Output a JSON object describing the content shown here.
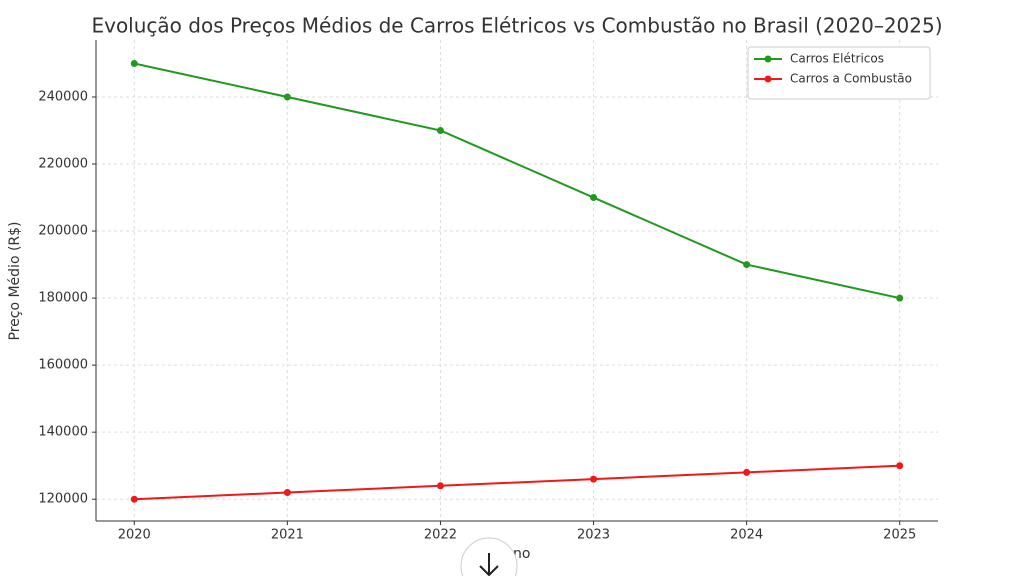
{
  "chart_data": {
    "type": "line",
    "title": "Evolução dos Preços Médios de Carros Elétricos vs Combustão no Brasil (2020–2025)",
    "x_label": "Ano",
    "y_label": "Preço Médio (R$)",
    "x": [
      2020,
      2021,
      2022,
      2023,
      2024,
      2025
    ],
    "series": [
      {
        "name": "Carros Elétricos",
        "color": "#1f9a1f",
        "values": [
          250000,
          240000,
          230000,
          210000,
          190000,
          180000
        ]
      },
      {
        "name": "Carros a Combustão",
        "color": "#f01818",
        "values": [
          120000,
          122000,
          124000,
          126000,
          128000,
          130000
        ]
      }
    ],
    "xlim": [
      2019.75,
      2025.25
    ],
    "xticks": [
      2020,
      2021,
      2022,
      2023,
      2024,
      2025
    ],
    "ylim": [
      113500,
      257000
    ],
    "yticks": [
      120000,
      140000,
      160000,
      180000,
      200000,
      220000,
      240000
    ],
    "grid": true,
    "legend": "upper right"
  }
}
